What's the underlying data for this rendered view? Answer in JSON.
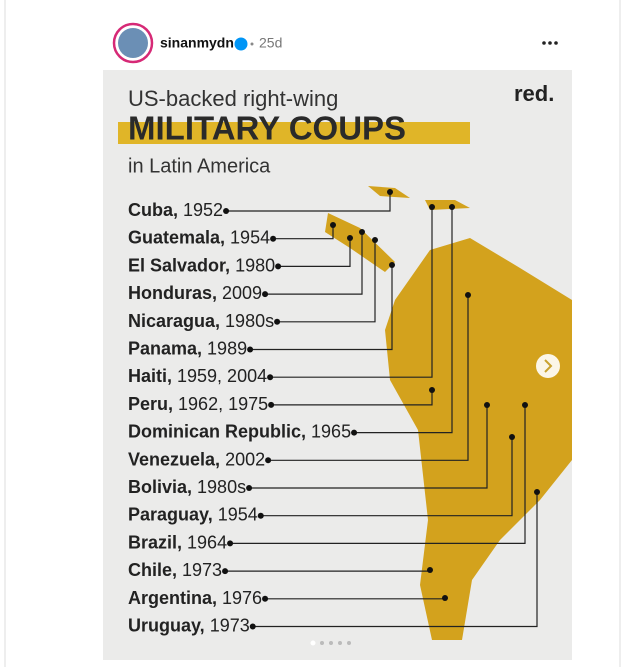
{
  "post": {
    "username": "sinanmydn",
    "age": "25d"
  },
  "infographic": {
    "title_line1": "US-backed right-wing",
    "title_main": "MILITARY COUPS",
    "title_line3": "in Latin America",
    "brand": "red.",
    "items": [
      {
        "name": "Cuba,",
        "years": "1952"
      },
      {
        "name": "Guatemala,",
        "years": "1954"
      },
      {
        "name": "El Salvador,",
        "years": "1980"
      },
      {
        "name": "Honduras,",
        "years": "2009"
      },
      {
        "name": "Nicaragua,",
        "years": "1980s"
      },
      {
        "name": "Panama,",
        "years": "1989"
      },
      {
        "name": "Haiti,",
        "years": "1959, 2004"
      },
      {
        "name": "Peru,",
        "years": "1962, 1975"
      },
      {
        "name": "Dominican Republic,",
        "years": "1965"
      },
      {
        "name": "Venezuela,",
        "years": "2002"
      },
      {
        "name": "Bolivia,",
        "years": "1980s"
      },
      {
        "name": "Paraguay,",
        "years": "1954"
      },
      {
        "name": "Brazil,",
        "years": "1964"
      },
      {
        "name": "Chile,",
        "years": "1973"
      },
      {
        "name": "Argentina,",
        "years": "1976"
      },
      {
        "name": "Uruguay,",
        "years": "1973"
      }
    ]
  }
}
